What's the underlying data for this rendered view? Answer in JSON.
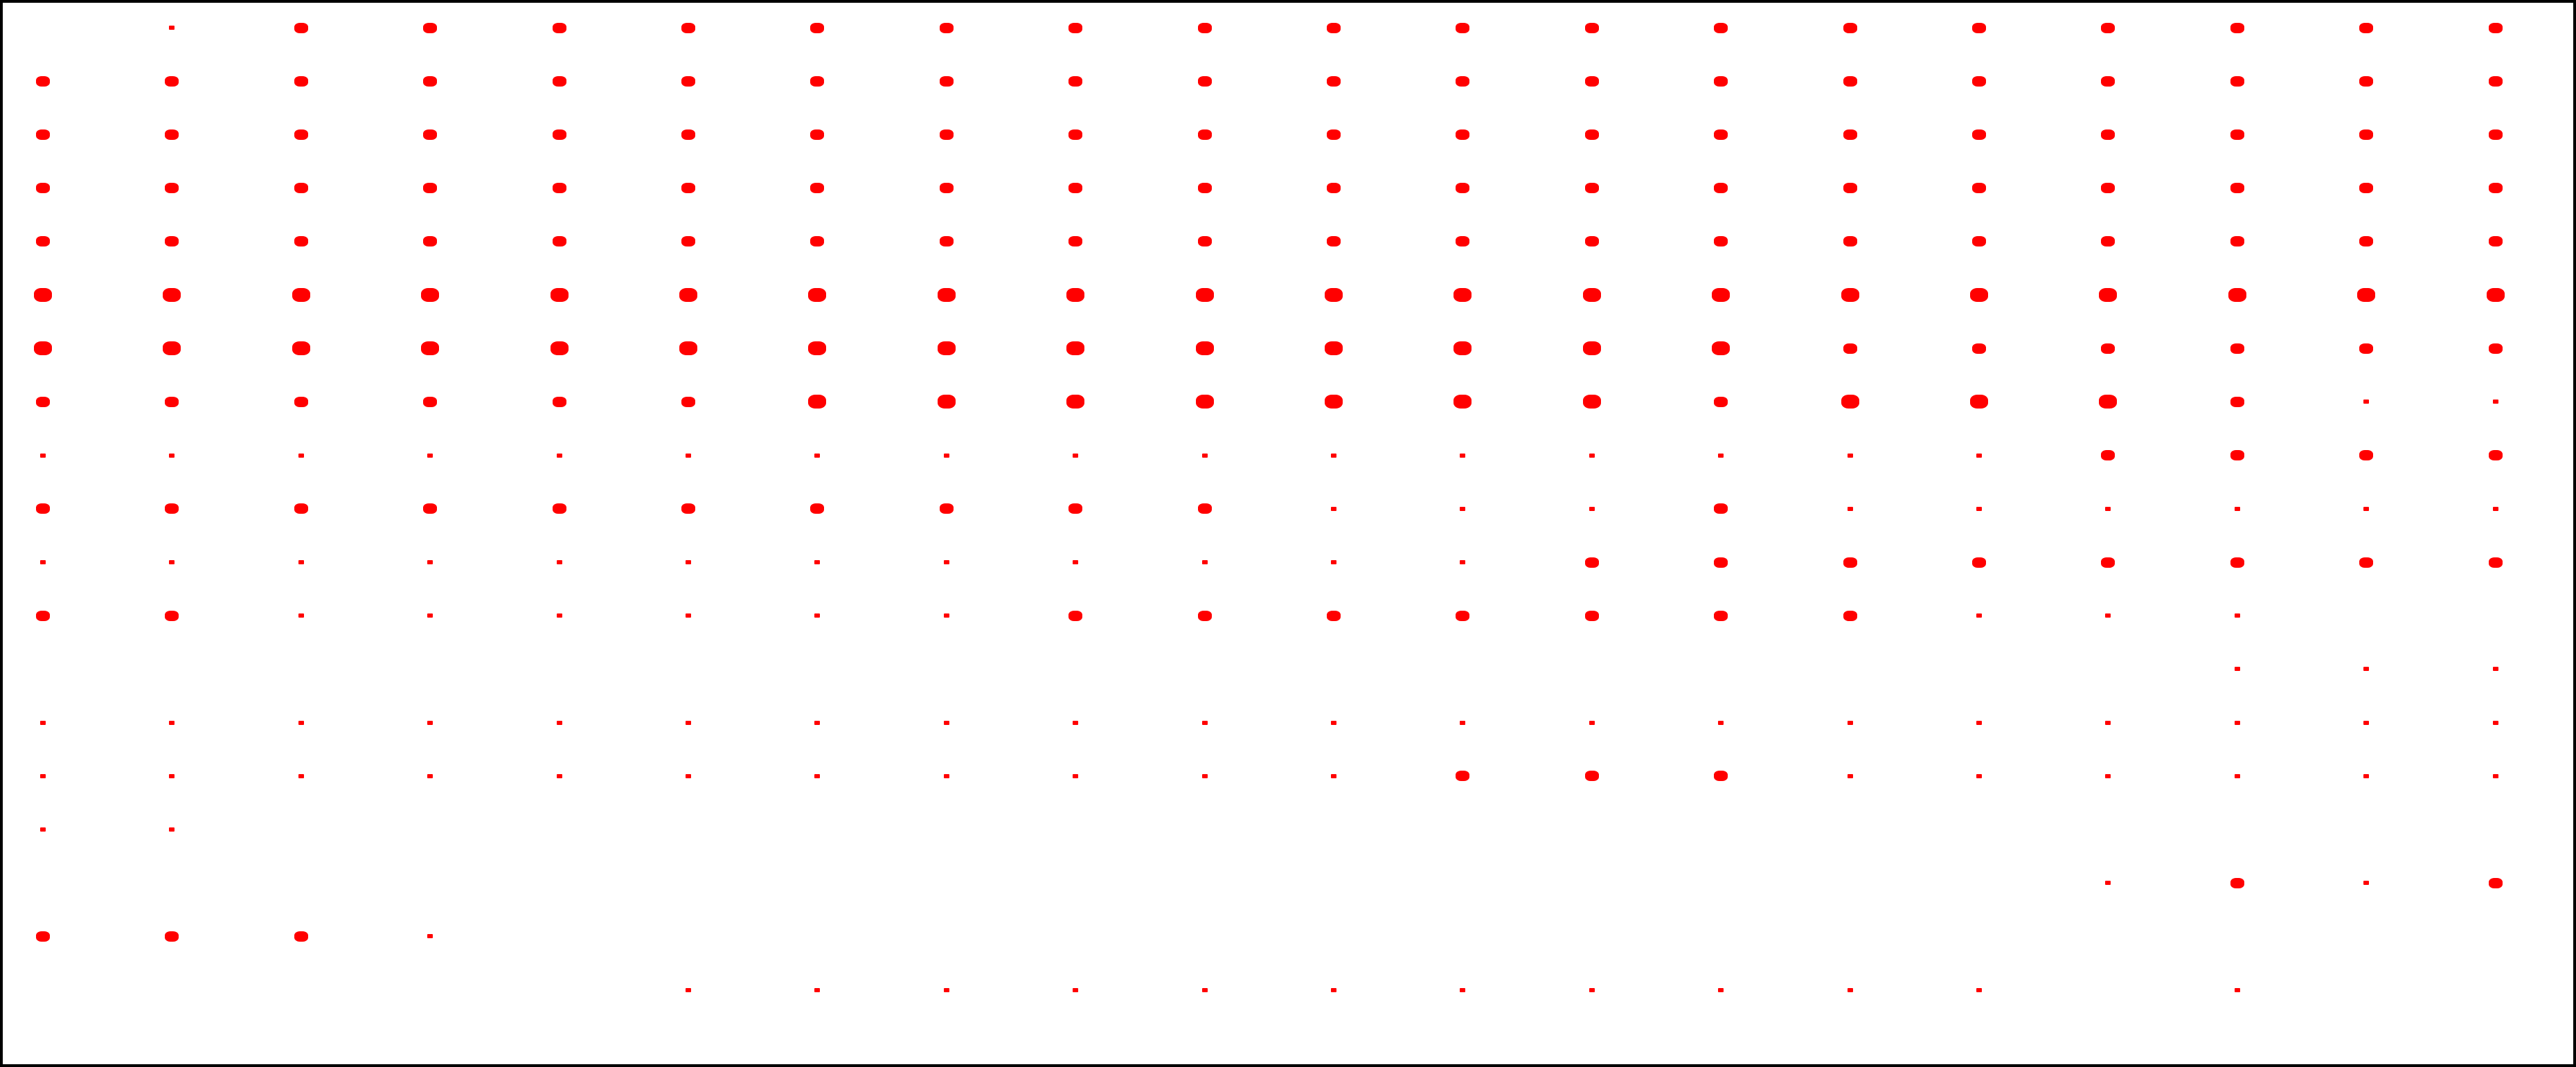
{
  "canvas": {
    "background_color": "#ffffff",
    "border_color": "#000000",
    "mark_color": "#ff0000",
    "grid": {
      "columns": 20,
      "rows": 19
    },
    "rows": [
      {
        "row": 1,
        "sizes": [
          0,
          1,
          2,
          2,
          2,
          2,
          2,
          2,
          2,
          2,
          2,
          2,
          2,
          2,
          2,
          2,
          2,
          2,
          2,
          2
        ]
      },
      {
        "row": 2,
        "sizes": [
          2,
          2,
          2,
          2,
          2,
          2,
          2,
          2,
          2,
          2,
          2,
          2,
          2,
          2,
          2,
          2,
          2,
          2,
          2,
          2
        ]
      },
      {
        "row": 3,
        "sizes": [
          2,
          2,
          2,
          2,
          2,
          2,
          2,
          2,
          2,
          2,
          2,
          2,
          2,
          2,
          2,
          2,
          2,
          2,
          2,
          2
        ]
      },
      {
        "row": 4,
        "sizes": [
          2,
          2,
          2,
          2,
          2,
          2,
          2,
          2,
          2,
          2,
          2,
          2,
          2,
          2,
          2,
          2,
          2,
          2,
          2,
          2
        ]
      },
      {
        "row": 5,
        "sizes": [
          2,
          2,
          2,
          2,
          2,
          2,
          2,
          2,
          2,
          2,
          2,
          2,
          2,
          2,
          2,
          2,
          2,
          2,
          2,
          2
        ]
      },
      {
        "row": 6,
        "sizes": [
          3,
          3,
          3,
          3,
          3,
          3,
          3,
          3,
          3,
          3,
          3,
          3,
          3,
          3,
          3,
          3,
          3,
          3,
          3,
          3
        ]
      },
      {
        "row": 7,
        "sizes": [
          3,
          3,
          3,
          3,
          3,
          3,
          3,
          3,
          3,
          3,
          3,
          3,
          3,
          3,
          2,
          2,
          2,
          2,
          2,
          2
        ]
      },
      {
        "row": 8,
        "sizes": [
          2,
          2,
          2,
          2,
          2,
          2,
          3,
          3,
          3,
          3,
          3,
          3,
          3,
          2,
          3,
          3,
          3,
          2,
          1,
          1
        ]
      },
      {
        "row": 9,
        "sizes": [
          1,
          1,
          1,
          1,
          1,
          1,
          1,
          1,
          1,
          1,
          1,
          1,
          1,
          1,
          1,
          1,
          2,
          2,
          2,
          2
        ]
      },
      {
        "row": 10,
        "sizes": [
          2,
          2,
          2,
          2,
          2,
          2,
          2,
          2,
          2,
          2,
          1,
          1,
          1,
          2,
          1,
          1,
          1,
          1,
          1,
          1
        ]
      },
      {
        "row": 11,
        "sizes": [
          1,
          1,
          1,
          1,
          1,
          1,
          1,
          1,
          1,
          1,
          1,
          1,
          2,
          2,
          2,
          2,
          2,
          2,
          2,
          2
        ]
      },
      {
        "row": 12,
        "sizes": [
          2,
          2,
          1,
          1,
          1,
          1,
          1,
          1,
          2,
          2,
          2,
          2,
          2,
          2,
          2,
          1,
          1,
          1,
          0,
          0
        ]
      },
      {
        "row": 13,
        "sizes": [
          0,
          0,
          0,
          0,
          0,
          0,
          0,
          0,
          0,
          0,
          0,
          0,
          0,
          0,
          0,
          0,
          0,
          1,
          1,
          1
        ]
      },
      {
        "row": 14,
        "sizes": [
          1,
          1,
          1,
          1,
          1,
          1,
          1,
          1,
          1,
          1,
          1,
          1,
          1,
          1,
          1,
          1,
          1,
          1,
          1,
          1
        ]
      },
      {
        "row": 15,
        "sizes": [
          1,
          1,
          1,
          1,
          1,
          1,
          1,
          1,
          1,
          1,
          1,
          2,
          2,
          2,
          1,
          1,
          1,
          1,
          1,
          1
        ]
      },
      {
        "row": 16,
        "sizes": [
          1,
          1,
          0,
          0,
          0,
          0,
          0,
          0,
          0,
          0,
          0,
          0,
          0,
          0,
          0,
          0,
          0,
          0,
          0,
          0
        ]
      },
      {
        "row": 17,
        "sizes": [
          0,
          0,
          0,
          0,
          0,
          0,
          0,
          0,
          0,
          0,
          0,
          0,
          0,
          0,
          0,
          0,
          1,
          2,
          1,
          2
        ]
      },
      {
        "row": 18,
        "sizes": [
          2,
          2,
          2,
          1,
          0,
          0,
          0,
          0,
          0,
          0,
          0,
          0,
          0,
          0,
          0,
          0,
          0,
          0,
          0,
          0
        ]
      },
      {
        "row": 19,
        "sizes": [
          0,
          0,
          0,
          0,
          0,
          1,
          1,
          1,
          1,
          1,
          1,
          1,
          1,
          1,
          1,
          1,
          0,
          1,
          0,
          0
        ]
      }
    ]
  }
}
